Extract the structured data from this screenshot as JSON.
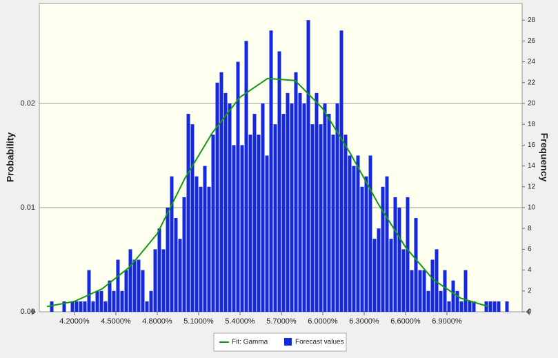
{
  "chart_data": {
    "type": "histogram",
    "ylabel": "Probability",
    "y2label": "Frequency",
    "xlim": [
      3.945,
      7.445
    ],
    "xticks": [
      {
        "value": 4.2,
        "label": "4.2000%"
      },
      {
        "value": 4.5,
        "label": "4.5000%"
      },
      {
        "value": 4.8,
        "label": "4.8000%"
      },
      {
        "value": 5.1,
        "label": "5.1000%"
      },
      {
        "value": 5.4,
        "label": "5.4000%"
      },
      {
        "value": 5.7,
        "label": "5.7000%"
      },
      {
        "value": 6.0,
        "label": "6.0000%"
      },
      {
        "value": 6.3,
        "label": "6.3000%"
      },
      {
        "value": 6.6,
        "label": "6.6000%"
      },
      {
        "value": 6.9,
        "label": "6.9000%"
      }
    ],
    "ylim": [
      0,
      0.0296
    ],
    "yticks": [
      {
        "value": 0,
        "label": "0.00"
      },
      0.01,
      0.02
    ],
    "y2lim": [
      0,
      29.6
    ],
    "y2ticks": [
      0,
      2,
      4,
      6,
      8,
      10,
      12,
      14,
      16,
      18,
      20,
      22,
      24,
      26,
      28
    ],
    "grid": true,
    "legend": "bottom",
    "bins": [
      4.02,
      4.05,
      4.08,
      4.11,
      4.14,
      4.17,
      4.2,
      4.23,
      4.26,
      4.29,
      4.32,
      4.35,
      4.38,
      4.41,
      4.44,
      4.47,
      4.5,
      4.53,
      4.56,
      4.59,
      4.62,
      4.65,
      4.68,
      4.71,
      4.74,
      4.77,
      4.8,
      4.83,
      4.86,
      4.89,
      4.92,
      4.95,
      4.98,
      5.01,
      5.04,
      5.07,
      5.1,
      5.13,
      5.16,
      5.19,
      5.22,
      5.25,
      5.28,
      5.31,
      5.34,
      5.37,
      5.4,
      5.43,
      5.46,
      5.49,
      5.52,
      5.55,
      5.58,
      5.61,
      5.64,
      5.67,
      5.7,
      5.73,
      5.76,
      5.79,
      5.82,
      5.85,
      5.88,
      5.91,
      5.94,
      5.97,
      6.0,
      6.03,
      6.06,
      6.09,
      6.12,
      6.15,
      6.18,
      6.21,
      6.24,
      6.27,
      6.3,
      6.33,
      6.36,
      6.39,
      6.42,
      6.45,
      6.48,
      6.51,
      6.54,
      6.57,
      6.6,
      6.63,
      6.66,
      6.69,
      6.72,
      6.75,
      6.78,
      6.81,
      6.84,
      6.87,
      6.9,
      6.93,
      6.96,
      6.99,
      7.02,
      7.05,
      7.08,
      7.11,
      7.14,
      7.17,
      7.2,
      7.23,
      7.26,
      7.29,
      7.32,
      7.35
    ],
    "series": [
      {
        "name": "Forecast values",
        "color": "#1428e0",
        "axis": "y2",
        "values": [
          1,
          0,
          0,
          1,
          0,
          1,
          1,
          1,
          1,
          4,
          1,
          2,
          2,
          1,
          3,
          2,
          5,
          2,
          4,
          6,
          5,
          5,
          4,
          1,
          2,
          6,
          8,
          6,
          10,
          13,
          9,
          7,
          11,
          19,
          18,
          13,
          12,
          14,
          12,
          17,
          22,
          23,
          21,
          20,
          16,
          24,
          16,
          26,
          17,
          19,
          17,
          20,
          15,
          27,
          18,
          25,
          19,
          21,
          20,
          23,
          21,
          20,
          28,
          18,
          21,
          18,
          20,
          19,
          17,
          20,
          27,
          17,
          15,
          14,
          15,
          12,
          13,
          15,
          7,
          8,
          12,
          13,
          7,
          11,
          10,
          6,
          11,
          4,
          9,
          4,
          4,
          2,
          5,
          6,
          2,
          4,
          1,
          3,
          2,
          1,
          4,
          1,
          1,
          0,
          0,
          1,
          1,
          1,
          1,
          0,
          1
        ]
      },
      {
        "name": "Fit: Gamma",
        "color": "#109a10",
        "x": [
          4.0,
          4.2,
          4.4,
          4.6,
          4.8,
          5.0,
          5.2,
          5.4,
          5.6,
          5.8,
          6.0,
          6.2,
          6.4,
          6.6,
          6.8,
          7.0,
          7.2
        ],
        "values": [
          0.0005,
          0.001,
          0.0022,
          0.0043,
          0.0075,
          0.0128,
          0.0172,
          0.0206,
          0.0224,
          0.0222,
          0.0195,
          0.0152,
          0.0104,
          0.0062,
          0.0031,
          0.0013,
          0.0005
        ]
      }
    ]
  }
}
